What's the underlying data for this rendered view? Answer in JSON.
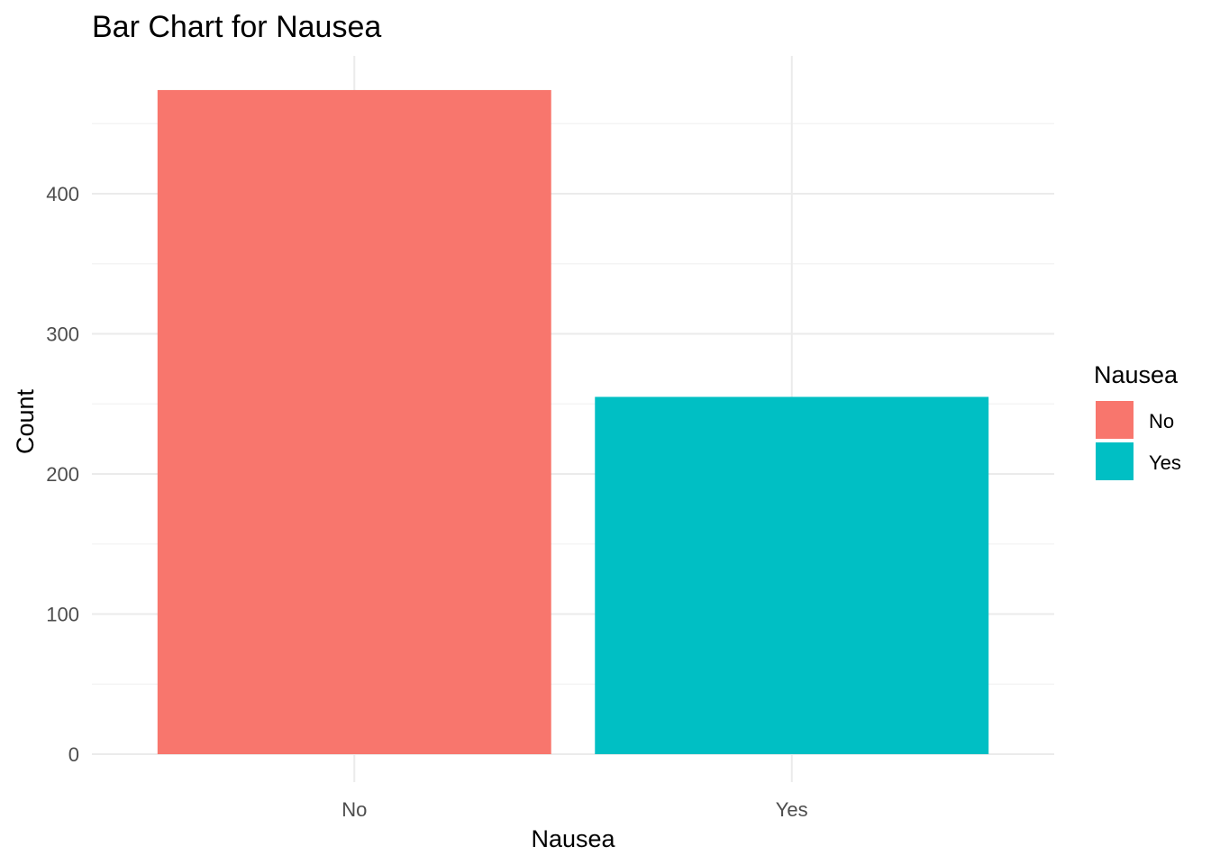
{
  "chart_data": {
    "type": "bar",
    "title": "Bar Chart for Nausea",
    "xlabel": "Nausea",
    "ylabel": "Count",
    "categories": [
      "No",
      "Yes"
    ],
    "values": [
      474,
      255
    ],
    "colors": [
      "#F8766D",
      "#00BFC4"
    ],
    "ylim": [
      0,
      500
    ],
    "yticks": [
      0,
      100,
      200,
      300,
      400
    ],
    "grid": true,
    "legend": {
      "title": "Nausea",
      "position": "right",
      "entries": [
        "No",
        "Yes"
      ]
    }
  }
}
